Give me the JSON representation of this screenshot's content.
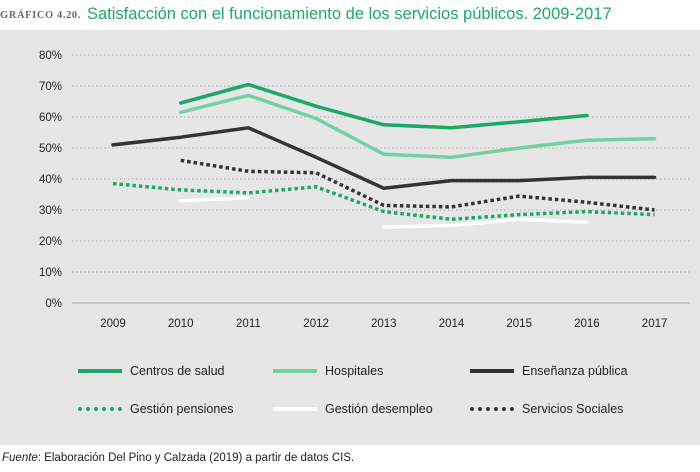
{
  "header": {
    "figure_label": "GRÁFICO 4.20.",
    "title": "Satisfacción con el funcionamiento de los servicios públicos. 2009-2017"
  },
  "footer": {
    "source_label": "Fuente",
    "source_text": ": Elaboración Del Pino y Calzada (2019) a partir de datos CIS."
  },
  "chart_data": {
    "type": "line",
    "title": "Satisfacción con el funcionamiento de los servicios públicos. 2009-2017",
    "xlabel": "",
    "ylabel": "",
    "x": [
      "2009",
      "2010",
      "2011",
      "2012",
      "2013",
      "2014",
      "2015",
      "2016",
      "2017"
    ],
    "y_ticks": [
      "0%",
      "10%",
      "20%",
      "30%",
      "40%",
      "50%",
      "60%",
      "70%",
      "80%"
    ],
    "ylim": [
      0,
      80
    ],
    "grid": "horizontal dotted",
    "legend_position": "bottom",
    "series": [
      {
        "name": "Centros de salud",
        "color": "#1aa868",
        "style": "solid",
        "values": [
          null,
          64.5,
          70.5,
          63.5,
          57.5,
          56.5,
          58.5,
          60.5,
          null
        ]
      },
      {
        "name": "Hospitales",
        "color": "#72d1a4",
        "style": "solid",
        "values": [
          null,
          61.5,
          67,
          59.5,
          48,
          47,
          50,
          52.5,
          53
        ]
      },
      {
        "name": "Enseñanza pública",
        "color": "#333333",
        "style": "solid",
        "values": [
          51,
          53.5,
          56.5,
          47,
          37,
          39.5,
          39.5,
          40.5,
          40.5
        ]
      },
      {
        "name": "Gestión pensiones",
        "color": "#1aa868",
        "style": "dotted",
        "values": [
          38.5,
          36.5,
          35.5,
          37.5,
          29.5,
          27,
          28.5,
          29.5,
          28.5
        ]
      },
      {
        "name": "Gestión desempleo",
        "color": "#ffffff",
        "style": "solid",
        "values": [
          null,
          33,
          34,
          null,
          24.5,
          25,
          27,
          26,
          null
        ]
      },
      {
        "name": "Servicios Sociales",
        "color": "#333333",
        "style": "dotted",
        "values": [
          null,
          46,
          42.5,
          42,
          31.5,
          31,
          34.5,
          32.5,
          30
        ]
      }
    ]
  }
}
